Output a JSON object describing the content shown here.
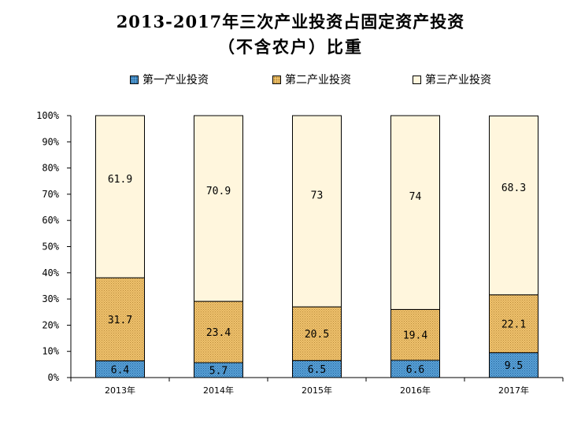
{
  "title_line1": "2013-2017年三次产业投资占固定资产投资",
  "title_line2": "（不含农户）比重",
  "legend": [
    {
      "name": "第一产业投资",
      "color": "#5ba3d8",
      "pattern": "dots-blue"
    },
    {
      "name": "第二产业投资",
      "color": "#f0c36e",
      "pattern": "dots-orange"
    },
    {
      "name": "第三产业投资",
      "color": "#fff6dd",
      "pattern": "solid"
    }
  ],
  "chart_data": {
    "type": "bar",
    "stacked": true,
    "categories": [
      "2013年",
      "2014年",
      "2015年",
      "2016年",
      "2017年"
    ],
    "series": [
      {
        "name": "第一产业投资",
        "values": [
          6.4,
          5.7,
          6.5,
          6.6,
          9.5
        ],
        "labels": [
          "6.4",
          "5.7",
          "6.5",
          "6.6",
          "9.5"
        ]
      },
      {
        "name": "第二产业投资",
        "values": [
          31.7,
          23.4,
          20.5,
          19.4,
          22.1
        ],
        "labels": [
          "31.7",
          "23.4",
          "20.5",
          "19.4",
          "22.1"
        ]
      },
      {
        "name": "第三产业投资",
        "values": [
          61.9,
          70.9,
          73,
          74,
          68.3
        ],
        "labels": [
          "61.9",
          "70.9",
          "73",
          "74",
          "68.3"
        ]
      }
    ],
    "ylim": [
      0,
      100
    ],
    "yticks": [
      "0%",
      "10%",
      "20%",
      "30%",
      "40%",
      "50%",
      "60%",
      "70%",
      "80%",
      "90%",
      "100%"
    ],
    "grid": false,
    "legend_position": "top"
  }
}
